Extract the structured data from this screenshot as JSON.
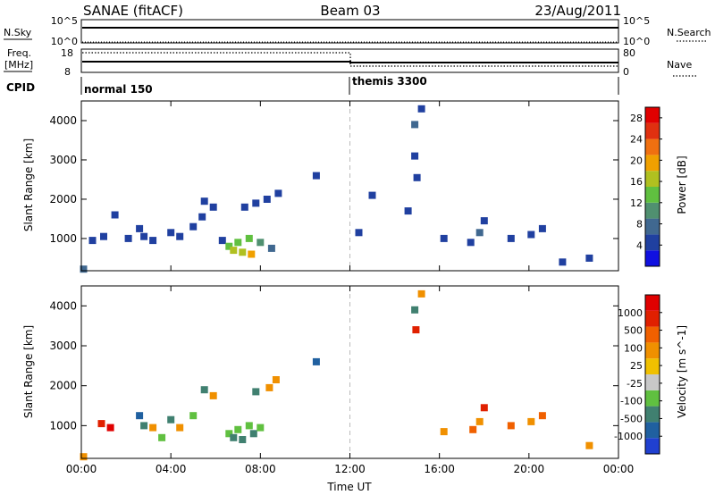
{
  "header": {
    "station": "SANAE (fitACF)",
    "beam": "Beam 03",
    "date": "23/Aug/2011"
  },
  "aux": {
    "nsky_label": "N.Sky",
    "nsearch_label": "N.Search",
    "freq_label_1": "Freq.",
    "freq_label_2": "[MHz]",
    "nave_label": "Nave",
    "cpid_label": "CPID",
    "nsky_ticks": [
      "10^5",
      "10^0"
    ],
    "nsearch_ticks": [
      "10^5",
      "10^0"
    ],
    "freq_ticks": [
      "18",
      "8"
    ],
    "nave_ticks": [
      "80",
      "0"
    ],
    "cpid_segments": [
      {
        "label": "normal 150",
        "start_hour": 0,
        "end_hour": 12
      },
      {
        "label": "themis 3300",
        "start_hour": 12,
        "end_hour": 24
      }
    ]
  },
  "chart_data": [
    {
      "type": "heatmap",
      "name": "power",
      "xlabel": "",
      "ylabel": "Slant Range [km]",
      "xlim": [
        0,
        24
      ],
      "ylim": [
        180,
        4500
      ],
      "x_ticks": [
        "00:00",
        "04:00",
        "08:00",
        "12:00",
        "16:00",
        "20:00",
        "00:00"
      ],
      "y_ticks": [
        "1000",
        "2000",
        "3000",
        "4000"
      ],
      "colorbar": {
        "label": "Power [dB]",
        "ticks": [
          "4",
          "8",
          "12",
          "16",
          "20",
          "24",
          "28"
        ],
        "range": [
          0,
          30
        ],
        "colors": [
          "#1010e0",
          "#2040a0",
          "#406890",
          "#509070",
          "#60c040",
          "#b0c020",
          "#f0a000",
          "#f07010",
          "#e03010",
          "#e00000"
        ]
      },
      "regions": [
        {
          "t": 0.1,
          "r": 220,
          "level": 2
        },
        {
          "t": 0.5,
          "r": 950,
          "level": 1
        },
        {
          "t": 1.0,
          "r": 1050,
          "level": 1
        },
        {
          "t": 1.5,
          "r": 1600,
          "level": 1
        },
        {
          "t": 2.1,
          "r": 1000,
          "level": 1
        },
        {
          "t": 2.6,
          "r": 1250,
          "level": 1
        },
        {
          "t": 2.8,
          "r": 1050,
          "level": 1
        },
        {
          "t": 3.2,
          "r": 950,
          "level": 1
        },
        {
          "t": 4.0,
          "r": 1150,
          "level": 1
        },
        {
          "t": 4.4,
          "r": 1050,
          "level": 1
        },
        {
          "t": 5.0,
          "r": 1300,
          "level": 1
        },
        {
          "t": 5.4,
          "r": 1550,
          "level": 1
        },
        {
          "t": 5.5,
          "r": 1950,
          "level": 1
        },
        {
          "t": 5.9,
          "r": 1800,
          "level": 1
        },
        {
          "t": 6.3,
          "r": 950,
          "level": 1
        },
        {
          "t": 6.6,
          "r": 800,
          "level": 4
        },
        {
          "t": 6.8,
          "r": 700,
          "level": 5
        },
        {
          "t": 7.0,
          "r": 900,
          "level": 4
        },
        {
          "t": 7.2,
          "r": 650,
          "level": 5
        },
        {
          "t": 7.3,
          "r": 1800,
          "level": 1
        },
        {
          "t": 7.5,
          "r": 1000,
          "level": 4
        },
        {
          "t": 7.6,
          "r": 600,
          "level": 6
        },
        {
          "t": 7.8,
          "r": 1900,
          "level": 1
        },
        {
          "t": 8.0,
          "r": 900,
          "level": 3
        },
        {
          "t": 8.3,
          "r": 2000,
          "level": 1
        },
        {
          "t": 8.5,
          "r": 750,
          "level": 2
        },
        {
          "t": 8.8,
          "r": 2150,
          "level": 1
        },
        {
          "t": 10.5,
          "r": 2600,
          "level": 1
        },
        {
          "t": 12.4,
          "r": 1150,
          "level": 1
        },
        {
          "t": 13.0,
          "r": 2100,
          "level": 1
        },
        {
          "t": 14.6,
          "r": 1700,
          "level": 1
        },
        {
          "t": 14.9,
          "r": 3900,
          "level": 2
        },
        {
          "t": 14.9,
          "r": 3100,
          "level": 1
        },
        {
          "t": 15.0,
          "r": 2550,
          "level": 1
        },
        {
          "t": 15.2,
          "r": 4300,
          "level": 1
        },
        {
          "t": 16.2,
          "r": 1000,
          "level": 1
        },
        {
          "t": 17.4,
          "r": 900,
          "level": 1
        },
        {
          "t": 17.8,
          "r": 1150,
          "level": 2
        },
        {
          "t": 18.0,
          "r": 1450,
          "level": 1
        },
        {
          "t": 19.2,
          "r": 1000,
          "level": 1
        },
        {
          "t": 20.1,
          "r": 1100,
          "level": 1
        },
        {
          "t": 20.6,
          "r": 1250,
          "level": 1
        },
        {
          "t": 21.5,
          "r": 400,
          "level": 1
        },
        {
          "t": 22.7,
          "r": 500,
          "level": 1
        }
      ]
    },
    {
      "type": "heatmap",
      "name": "velocity",
      "xlabel": "Time UT",
      "ylabel": "Slant Range [km]",
      "xlim": [
        0,
        24
      ],
      "ylim": [
        180,
        4500
      ],
      "x_ticks": [
        "00:00",
        "04:00",
        "08:00",
        "12:00",
        "16:00",
        "20:00",
        "00:00"
      ],
      "y_ticks": [
        "1000",
        "2000",
        "3000",
        "4000"
      ],
      "colorbar": {
        "label": "Velocity [m s^-1]",
        "ticks": [
          "1000",
          "500",
          "100",
          "25",
          "-25",
          "-100",
          "-500",
          "-1000"
        ],
        "colors": [
          "#2040d0",
          "#2060a0",
          "#408070",
          "#60c040",
          "#c8c8c8",
          "#f0c000",
          "#f09000",
          "#f06000",
          "#e02000",
          "#e00000"
        ]
      },
      "regions": [
        {
          "t": 0.1,
          "r": 220,
          "level": 6
        },
        {
          "t": 0.9,
          "r": 1050,
          "level": 8
        },
        {
          "t": 1.3,
          "r": 950,
          "level": 9
        },
        {
          "t": 2.6,
          "r": 1250,
          "level": 1
        },
        {
          "t": 2.8,
          "r": 1000,
          "level": 2
        },
        {
          "t": 3.2,
          "r": 950,
          "level": 6
        },
        {
          "t": 3.6,
          "r": 700,
          "level": 3
        },
        {
          "t": 4.0,
          "r": 1150,
          "level": 2
        },
        {
          "t": 4.4,
          "r": 950,
          "level": 6
        },
        {
          "t": 5.0,
          "r": 1250,
          "level": 3
        },
        {
          "t": 5.5,
          "r": 1900,
          "level": 2
        },
        {
          "t": 5.9,
          "r": 1750,
          "level": 6
        },
        {
          "t": 6.6,
          "r": 800,
          "level": 3
        },
        {
          "t": 6.8,
          "r": 700,
          "level": 2
        },
        {
          "t": 7.0,
          "r": 900,
          "level": 3
        },
        {
          "t": 7.2,
          "r": 650,
          "level": 2
        },
        {
          "t": 7.5,
          "r": 1000,
          "level": 3
        },
        {
          "t": 7.7,
          "r": 800,
          "level": 2
        },
        {
          "t": 7.8,
          "r": 1850,
          "level": 2
        },
        {
          "t": 8.0,
          "r": 950,
          "level": 3
        },
        {
          "t": 8.4,
          "r": 1950,
          "level": 6
        },
        {
          "t": 8.7,
          "r": 2150,
          "level": 6
        },
        {
          "t": 10.5,
          "r": 2600,
          "level": 1
        },
        {
          "t": 14.9,
          "r": 3900,
          "level": 2
        },
        {
          "t": 14.95,
          "r": 3400,
          "level": 8
        },
        {
          "t": 15.2,
          "r": 4300,
          "level": 6
        },
        {
          "t": 16.2,
          "r": 850,
          "level": 6
        },
        {
          "t": 17.5,
          "r": 900,
          "level": 7
        },
        {
          "t": 17.8,
          "r": 1100,
          "level": 6
        },
        {
          "t": 18.0,
          "r": 1450,
          "level": 8
        },
        {
          "t": 19.2,
          "r": 1000,
          "level": 7
        },
        {
          "t": 20.1,
          "r": 1100,
          "level": 6
        },
        {
          "t": 20.6,
          "r": 1250,
          "level": 7
        },
        {
          "t": 22.7,
          "r": 500,
          "level": 6
        }
      ]
    }
  ]
}
